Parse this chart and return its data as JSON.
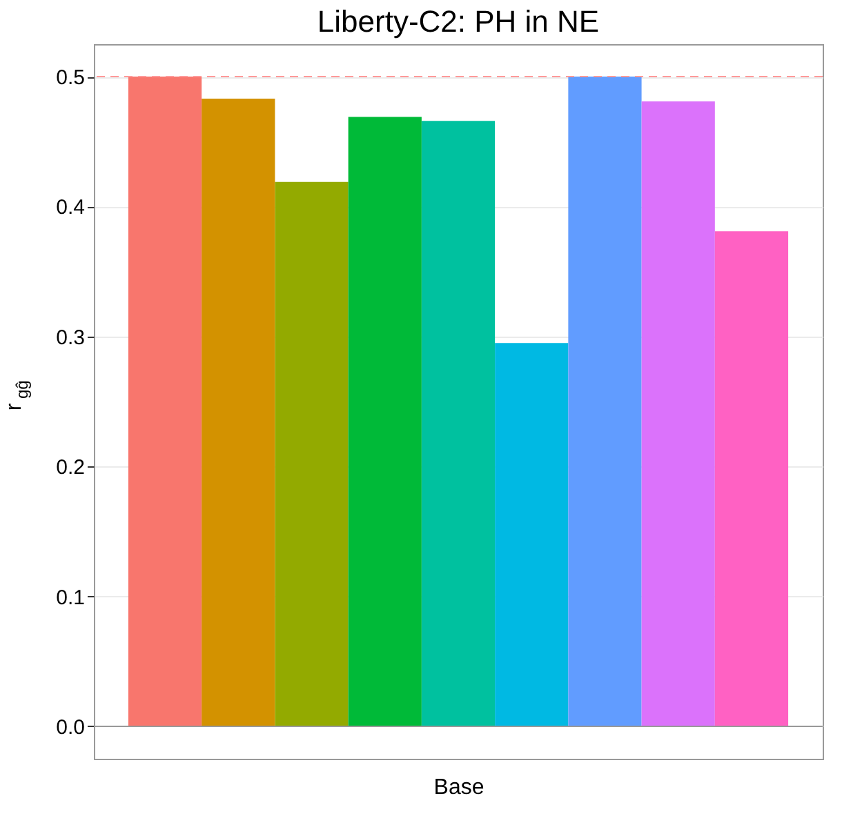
{
  "chart_data": {
    "type": "bar",
    "title": "Liberty-C2: PH in NE",
    "xlabel": "Base",
    "ylabel": "r$_{gĝ}$",
    "categories": [
      null,
      null,
      null,
      null,
      null,
      null,
      null,
      null,
      null
    ],
    "values": [
      0.5,
      0.483,
      0.419,
      0.469,
      0.466,
      0.295,
      0.5,
      0.481,
      0.381
    ],
    "colors": [
      "#f8766d",
      "#d39200",
      "#93aa00",
      "#00ba38",
      "#00c19f",
      "#00b9e3",
      "#619cff",
      "#db72fb",
      "#ff61c3"
    ],
    "ylim": [
      -0.025,
      0.525
    ],
    "yticks": [
      {
        "value": 0,
        "label": "0.0"
      },
      0.1,
      0.2,
      0.3,
      0.4,
      0.5
    ],
    "ref_lines": [
      {
        "axis": "y",
        "value": 0.5,
        "color": "#ff9999",
        "line_style": "dashed"
      }
    ],
    "grid": "y",
    "tick_labels": "y"
  }
}
